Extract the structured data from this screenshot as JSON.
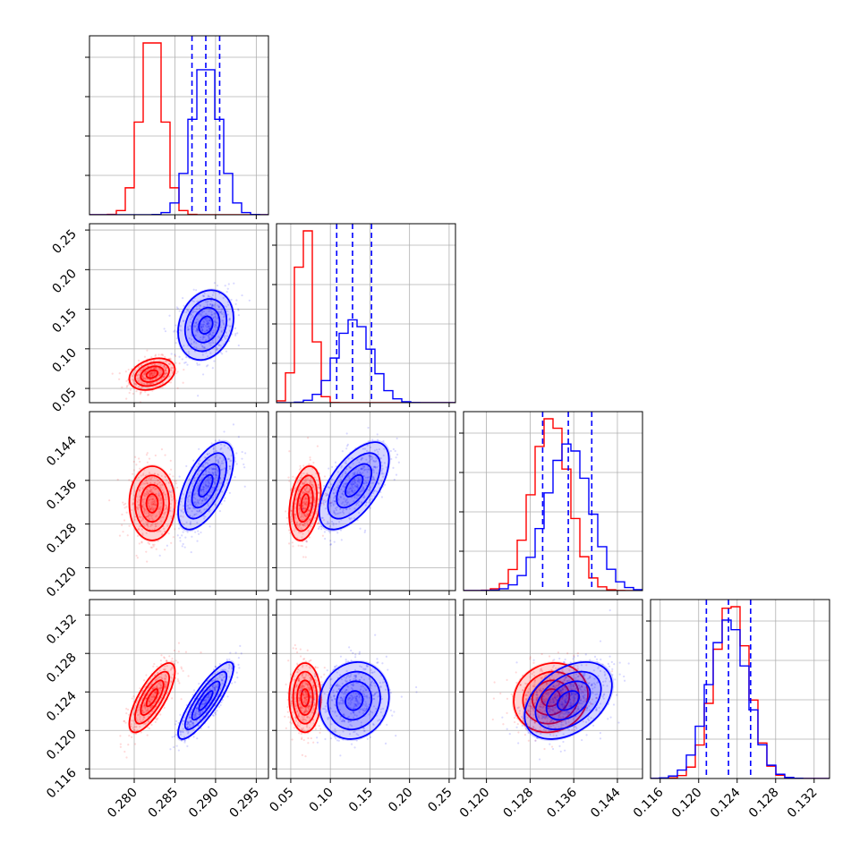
{
  "chart_data": {
    "type": "corner",
    "title": "",
    "grid": true,
    "colors": {
      "red": "#ff0000",
      "blue": "#0000ff"
    },
    "parameters": [
      {
        "range": [
          0.2745,
          0.2965
        ],
        "ticks": [
          {
            "v": 0.28,
            "label": "0.280"
          },
          {
            "v": 0.285,
            "label": "0.285"
          },
          {
            "v": 0.29,
            "label": "0.290"
          },
          {
            "v": 0.295,
            "label": "0.295"
          }
        ]
      },
      {
        "range": [
          0.032,
          0.258
        ],
        "ticks": [
          {
            "v": 0.05,
            "label": "0.05"
          },
          {
            "v": 0.1,
            "label": "0.10"
          },
          {
            "v": 0.15,
            "label": "0.15"
          },
          {
            "v": 0.2,
            "label": "0.20"
          },
          {
            "v": 0.25,
            "label": "0.25"
          }
        ]
      },
      {
        "range": [
          0.1158,
          0.1486
        ],
        "ticks": [
          {
            "v": 0.12,
            "label": "0.120"
          },
          {
            "v": 0.128,
            "label": "0.128"
          },
          {
            "v": 0.136,
            "label": "0.136"
          },
          {
            "v": 0.144,
            "label": "0.144"
          }
        ]
      },
      {
        "range": [
          0.115,
          0.1336
        ],
        "ticks": [
          {
            "v": 0.116,
            "label": "0.116"
          },
          {
            "v": 0.12,
            "label": "0.120"
          },
          {
            "v": 0.124,
            "label": "0.124"
          },
          {
            "v": 0.128,
            "label": "0.128"
          },
          {
            "v": 0.132,
            "label": "0.132"
          }
        ]
      }
    ],
    "series": [
      {
        "color": "red",
        "mean": [
          0.2822,
          0.068,
          0.1318,
          0.1234
        ],
        "sd": [
          0.0014,
          0.01,
          0.0034,
          0.0018
        ],
        "corr": [
          [
            1,
            0.3,
            0.0,
            0.75
          ],
          [
            0.3,
            1,
            0.3,
            0.0
          ],
          [
            0.0,
            0.3,
            1,
            0.1
          ],
          [
            0.75,
            0.0,
            0.1,
            1
          ]
        ],
        "quantiles": [
          [],
          [],
          [],
          []
        ]
      },
      {
        "color": "blue",
        "mean": [
          0.2888,
          0.13,
          0.135,
          0.1231
        ],
        "sd": [
          0.0017,
          0.022,
          0.004,
          0.002
        ],
        "corr": [
          [
            1,
            0.2,
            0.6,
            0.85
          ],
          [
            0.2,
            1,
            0.6,
            0.1
          ],
          [
            0.6,
            0.6,
            1,
            0.4
          ],
          [
            0.85,
            0.1,
            0.4,
            1
          ]
        ],
        "quantiles": [
          [
            0.2871,
            0.2888,
            0.2905
          ],
          [
            0.108,
            0.128,
            0.152
          ],
          [
            0.1303,
            0.135,
            0.1393
          ],
          [
            0.1208,
            0.1231,
            0.1254
          ]
        ]
      }
    ]
  }
}
